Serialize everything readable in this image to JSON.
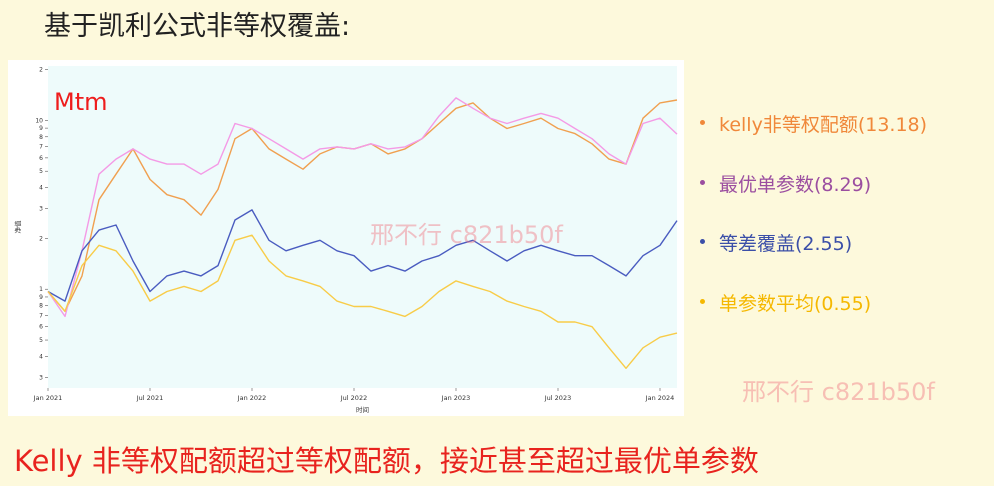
{
  "header": {
    "title": "基于凯利公式非等权覆盖:"
  },
  "note": "Kelly 非等权配额超过等权配额，接近甚至超过最优单参数",
  "watermarks": [
    "邢不行 c821b50f",
    "邢不行 c821b50f"
  ],
  "chart_data": {
    "type": "line",
    "title": "Mtm",
    "x_label": "时间",
    "y_label": "净值",
    "log_scale": true,
    "background": "#eefbfb",
    "x": [
      "2021-01",
      "2021-02",
      "2021-03",
      "2021-04",
      "2021-05",
      "2021-06",
      "2021-07",
      "2021-08",
      "2021-09",
      "2021-10",
      "2021-11",
      "2021-12",
      "2022-01",
      "2022-02",
      "2022-03",
      "2022-04",
      "2022-05",
      "2022-06",
      "2022-07",
      "2022-08",
      "2022-09",
      "2022-10",
      "2022-11",
      "2022-12",
      "2023-01",
      "2023-02",
      "2023-03",
      "2023-04",
      "2023-05",
      "2023-06",
      "2023-07",
      "2023-08",
      "2023-09",
      "2023-10",
      "2023-11",
      "2023-12",
      "2024-01",
      "2024-02"
    ],
    "xlim": [
      "2021-01",
      "2024-02"
    ],
    "xticks": [
      {
        "value": "2021-01",
        "label": "Jan 2021"
      },
      {
        "value": "2021-07",
        "label": "Jul 2021"
      },
      {
        "value": "2022-01",
        "label": "Jan 2022"
      },
      {
        "value": "2022-07",
        "label": "Jul 2022"
      },
      {
        "value": "2023-01",
        "label": "Jan 2023"
      },
      {
        "value": "2023-07",
        "label": "Jul 2023"
      },
      {
        "value": "2024-01",
        "label": "Jan 2024"
      }
    ],
    "ylim": [
      0.26,
      21
    ],
    "yticks": [
      {
        "value": 0.3,
        "label": "3"
      },
      {
        "value": 0.4,
        "label": "4"
      },
      {
        "value": 0.5,
        "label": "5"
      },
      {
        "value": 0.6,
        "label": "6"
      },
      {
        "value": 0.7,
        "label": "7"
      },
      {
        "value": 0.8,
        "label": "8"
      },
      {
        "value": 0.9,
        "label": "9"
      },
      1,
      2,
      3,
      4,
      5,
      6,
      7,
      8,
      9,
      10,
      {
        "value": 20,
        "label": "2"
      }
    ],
    "series": [
      {
        "name": "kelly非等权配额(13.18)",
        "color": "#f0a050",
        "legend_color": "#f0883a",
        "values": [
          0.97,
          0.74,
          1.2,
          3.39,
          4.8,
          6.78,
          4.47,
          3.63,
          3.39,
          2.75,
          3.9,
          7.79,
          8.95,
          6.78,
          5.9,
          5.14,
          6.33,
          6.97,
          6.78,
          7.27,
          6.33,
          6.78,
          7.79,
          9.59,
          11.8,
          12.7,
          10.3,
          8.95,
          9.59,
          10.3,
          8.95,
          8.35,
          7.27,
          5.9,
          5.51,
          10.3,
          12.7,
          13.2
        ]
      },
      {
        "name": "最优单参数(8.29)",
        "color": "#f49ae6",
        "legend_color": "#9b4ea0",
        "values": [
          0.97,
          0.69,
          1.69,
          4.8,
          5.9,
          6.78,
          5.9,
          5.51,
          5.51,
          4.8,
          5.51,
          9.59,
          8.95,
          7.79,
          6.78,
          5.9,
          6.78,
          6.97,
          6.78,
          7.27,
          6.78,
          6.97,
          7.79,
          10.6,
          13.6,
          11.8,
          10.3,
          9.59,
          10.3,
          11.0,
          10.3,
          8.95,
          7.79,
          6.33,
          5.51,
          9.59,
          10.3,
          8.3
        ]
      },
      {
        "name": "等差覆盖(2.55)",
        "color": "#4a5cc0",
        "legend_color": "#3b4fa8",
        "values": [
          0.97,
          0.85,
          1.69,
          2.24,
          2.4,
          1.47,
          0.97,
          1.2,
          1.28,
          1.2,
          1.38,
          2.57,
          2.95,
          1.95,
          1.69,
          1.82,
          1.95,
          1.69,
          1.58,
          1.28,
          1.38,
          1.28,
          1.47,
          1.58,
          1.82,
          1.95,
          1.69,
          1.47,
          1.69,
          1.82,
          1.69,
          1.58,
          1.58,
          1.38,
          1.2,
          1.58,
          1.82,
          2.55
        ]
      },
      {
        "name": "单参数平均(0.55)",
        "color": "#f8cc48",
        "legend_color": "#f5b800",
        "values": [
          0.97,
          0.74,
          1.38,
          1.82,
          1.69,
          1.28,
          0.85,
          0.97,
          1.04,
          0.97,
          1.12,
          1.95,
          2.09,
          1.47,
          1.2,
          1.12,
          1.04,
          0.85,
          0.79,
          0.79,
          0.74,
          0.69,
          0.79,
          0.97,
          1.12,
          1.04,
          0.97,
          0.85,
          0.79,
          0.74,
          0.64,
          0.64,
          0.6,
          0.45,
          0.34,
          0.45,
          0.52,
          0.55
        ]
      }
    ]
  }
}
